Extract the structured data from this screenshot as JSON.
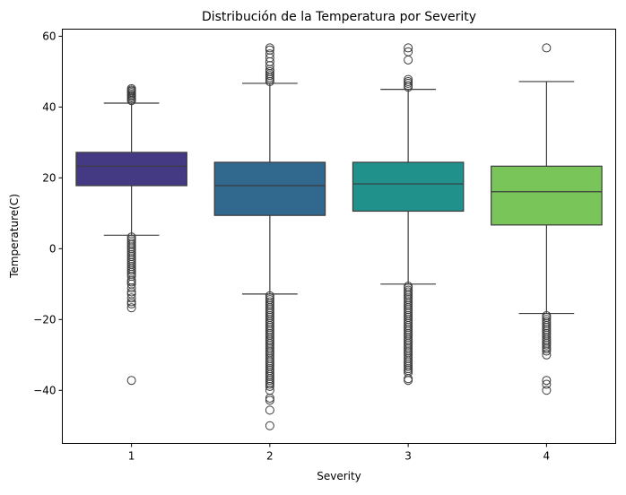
{
  "chart_data": {
    "type": "box",
    "title": "Distribución de la Temperatura por Severity",
    "xlabel": "Severity",
    "ylabel": "Temperature(C)",
    "categories": [
      "1",
      "2",
      "3",
      "4"
    ],
    "ylim": [
      -55,
      62
    ],
    "yticks": [
      -40,
      -20,
      0,
      20,
      40,
      60
    ],
    "ytick_labels": [
      "−40",
      "−20",
      "0",
      "20",
      "40",
      "60"
    ],
    "grid": false,
    "boxes": [
      {
        "category": "1",
        "color": "#443983",
        "whisker_low": 3.8,
        "q1": 17.8,
        "median": 23.3,
        "q3": 27.2,
        "whisker_high": 41.1,
        "outliers": [
          41.8,
          42.2,
          42.6,
          43.0,
          43.3,
          43.7,
          44.1,
          44.5,
          44.8,
          45.2,
          3.3,
          2.7,
          2.2,
          1.6,
          1.1,
          0.5,
          0.0,
          -0.6,
          -1.1,
          -1.7,
          -2.2,
          -2.8,
          -3.3,
          -3.9,
          -4.4,
          -5.0,
          -5.6,
          -6.1,
          -6.7,
          -7.2,
          -7.8,
          -8.9,
          -9.4,
          -10.0,
          -11.1,
          -12.2,
          -12.8,
          -13.9,
          -15.0,
          -15.6,
          -16.7,
          -37.2
        ]
      },
      {
        "category": "2",
        "color": "#31688e",
        "whisker_low": -12.8,
        "q1": 9.4,
        "median": 17.8,
        "q3": 24.4,
        "whisker_high": 46.7,
        "outliers": [
          47.2,
          47.8,
          48.3,
          48.9,
          49.4,
          50.0,
          50.6,
          51.7,
          52.8,
          53.9,
          55.0,
          56.1,
          56.7,
          -13.3,
          -13.9,
          -14.4,
          -15.0,
          -15.6,
          -16.1,
          -16.7,
          -17.2,
          -17.8,
          -18.3,
          -18.9,
          -19.4,
          -20.0,
          -20.6,
          -21.1,
          -21.7,
          -22.2,
          -22.8,
          -23.3,
          -23.9,
          -24.4,
          -25.0,
          -25.6,
          -26.1,
          -26.7,
          -27.2,
          -27.8,
          -28.3,
          -28.9,
          -29.4,
          -30.0,
          -30.6,
          -31.1,
          -31.7,
          -32.2,
          -32.8,
          -33.3,
          -33.9,
          -34.4,
          -35.0,
          -35.6,
          -36.1,
          -36.7,
          -37.2,
          -37.8,
          -38.3,
          -38.9,
          -40.0,
          -42.2,
          -42.8,
          -45.6,
          -50.0
        ]
      },
      {
        "category": "3",
        "color": "#21918c",
        "whisker_low": -10.0,
        "q1": 10.6,
        "median": 18.3,
        "q3": 24.4,
        "whisker_high": 45.0,
        "outliers": [
          45.6,
          46.1,
          46.7,
          47.2,
          47.8,
          53.3,
          55.6,
          56.7,
          -10.6,
          -11.1,
          -11.7,
          -12.2,
          -12.8,
          -13.3,
          -13.9,
          -14.4,
          -15.0,
          -15.6,
          -16.1,
          -16.7,
          -17.2,
          -17.8,
          -18.3,
          -18.9,
          -19.4,
          -20.0,
          -20.6,
          -21.1,
          -21.7,
          -22.2,
          -22.8,
          -23.3,
          -23.9,
          -24.4,
          -25.0,
          -25.6,
          -26.1,
          -26.7,
          -27.2,
          -27.8,
          -28.3,
          -28.9,
          -29.4,
          -30.0,
          -30.6,
          -31.1,
          -31.7,
          -32.2,
          -32.8,
          -33.3,
          -33.9,
          -34.4,
          -35.0,
          -36.7,
          -37.2
        ]
      },
      {
        "category": "4",
        "color": "#7ac55a",
        "whisker_low": -18.3,
        "q1": 6.7,
        "median": 16.1,
        "q3": 23.3,
        "whisker_high": 47.2,
        "outliers": [
          56.7,
          -18.9,
          -19.4,
          -20.0,
          -20.6,
          -21.1,
          -21.7,
          -22.2,
          -22.8,
          -23.3,
          -23.9,
          -24.4,
          -25.0,
          -25.6,
          -26.1,
          -26.7,
          -27.2,
          -27.8,
          -28.3,
          -28.9,
          -30.0,
          -37.2,
          -38.3,
          -40.0
        ]
      }
    ]
  }
}
